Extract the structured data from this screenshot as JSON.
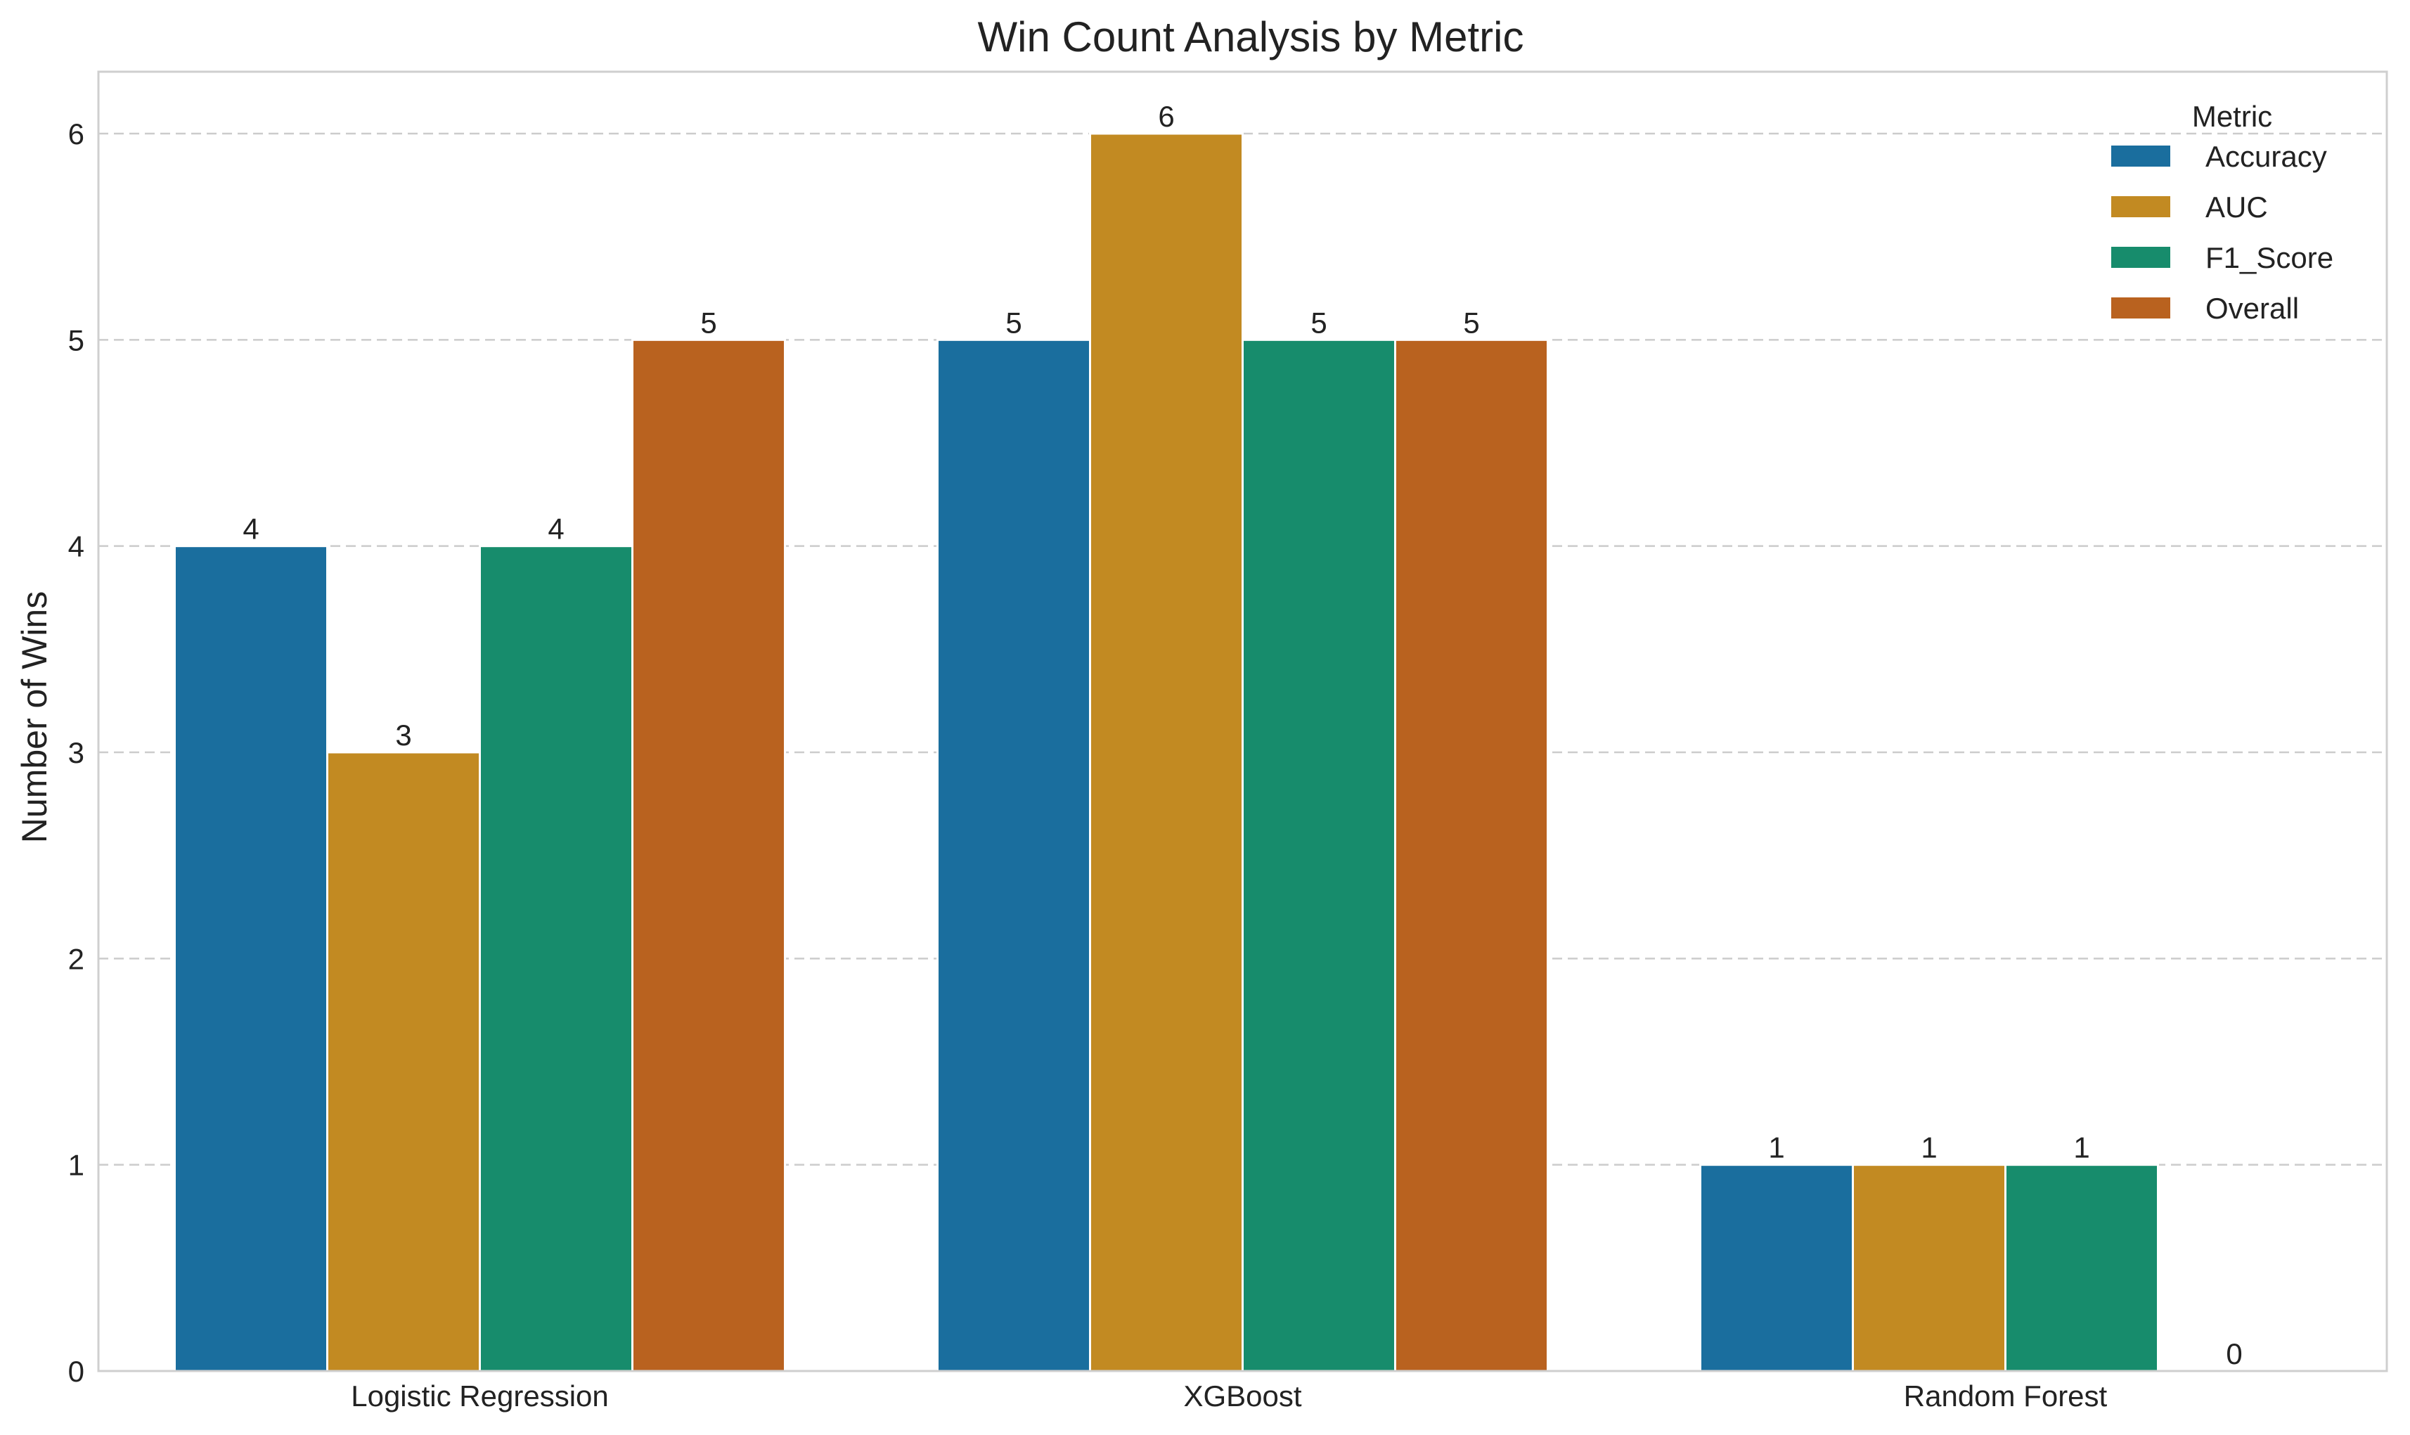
{
  "chart_data": {
    "type": "bar",
    "title": "Win Count Analysis by Metric",
    "xlabel": "",
    "ylabel": "Number of Wins",
    "ylim": [
      0,
      6.3
    ],
    "yticks": [
      0,
      1,
      2,
      3,
      4,
      5,
      6
    ],
    "grid": "horizontal dashed",
    "categories": [
      "Logistic Regression",
      "XGBoost",
      "Random Forest"
    ],
    "legend_title": "Metric",
    "legend_position": "top-right",
    "series": [
      {
        "name": "Accuracy",
        "color": "#1a6e9e",
        "values": [
          4,
          5,
          1
        ]
      },
      {
        "name": "AUC",
        "color": "#c28a22",
        "values": [
          3,
          6,
          1
        ]
      },
      {
        "name": "F1_Score",
        "color": "#178c6c",
        "values": [
          4,
          5,
          1
        ]
      },
      {
        "name": "Overall",
        "color": "#b9621f",
        "values": [
          5,
          5,
          0
        ]
      }
    ]
  }
}
